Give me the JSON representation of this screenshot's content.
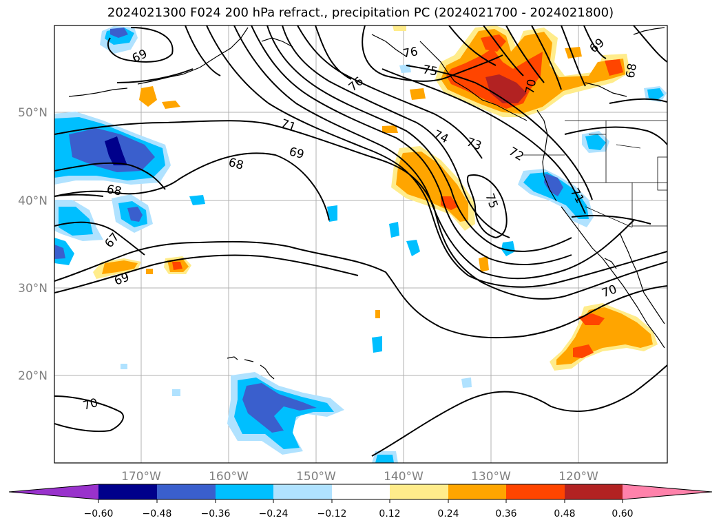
{
  "title": "2024021300 F024 200 hPa refract., precipitation PC (2024021700 - 2024021800)",
  "map": {
    "lon_ticks": [
      "170°W",
      "160°W",
      "150°W",
      "140°W",
      "130°W",
      "120°W"
    ],
    "lat_ticks": [
      "50°N",
      "40°N",
      "30°N",
      "20°N"
    ],
    "contour_labels": [
      "69",
      "76",
      "75",
      "76",
      "69",
      "68",
      "70",
      "71",
      "69",
      "68",
      "74",
      "73",
      "72",
      "68",
      "67",
      "69",
      "75",
      "71",
      "70",
      "70"
    ],
    "colors": {
      "neg_060": "#9932cc",
      "neg_048": "#00008b",
      "neg_036": "#3a5fcd",
      "neg_024": "#00bfff",
      "neg_012": "#b0e2ff",
      "zero": "#ffffff",
      "pos_012": "#ffec8b",
      "pos_024": "#ffa500",
      "pos_036": "#ff4500",
      "pos_048": "#b22222",
      "pos_060": "#ff82ab"
    }
  },
  "colorbar": {
    "ticks": [
      "−0.60",
      "−0.48",
      "−0.36",
      "−0.24",
      "−0.12",
      "0.12",
      "0.24",
      "0.36",
      "0.48",
      "0.60"
    ],
    "colors": [
      "#9932cc",
      "#00008b",
      "#3a5fcd",
      "#00bfff",
      "#b0e2ff",
      "#ffffff",
      "#ffec8b",
      "#ffa500",
      "#ff4500",
      "#b22222",
      "#ff82ab"
    ]
  }
}
